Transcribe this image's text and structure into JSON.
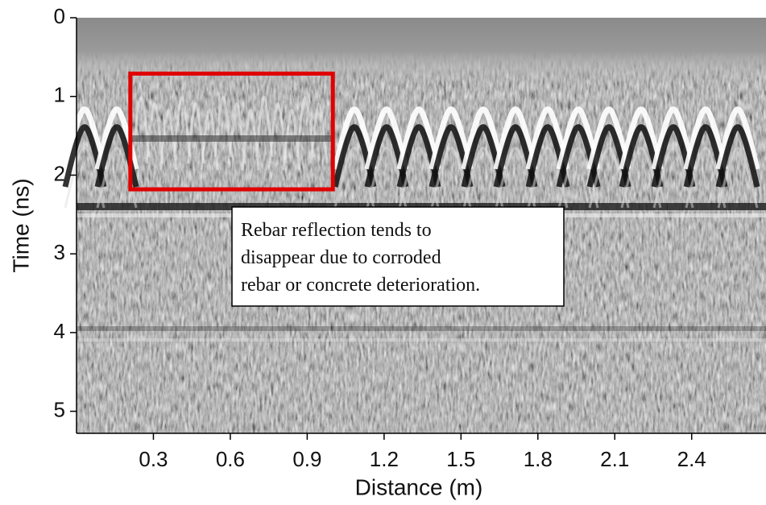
{
  "chart_data": {
    "type": "image",
    "xlabel": "Distance (m)",
    "ylabel": "Time (ns)",
    "xlim": [
      0,
      2.69
    ],
    "ylim": [
      0,
      5.28
    ],
    "y_inverted": true,
    "xticks": [
      0.3,
      0.6,
      0.9,
      1.2,
      1.5,
      1.8,
      2.1,
      2.4
    ],
    "yticks": [
      0,
      1,
      2,
      3,
      4,
      5
    ],
    "highlight": {
      "x": [
        0.21,
        1.0
      ],
      "y": [
        0.71,
        2.18
      ],
      "color": "#e00000"
    },
    "annotation": [
      "Rebar reflection tends to",
      "disappear due to corroded",
      "rebar or concrete deterioration."
    ]
  }
}
